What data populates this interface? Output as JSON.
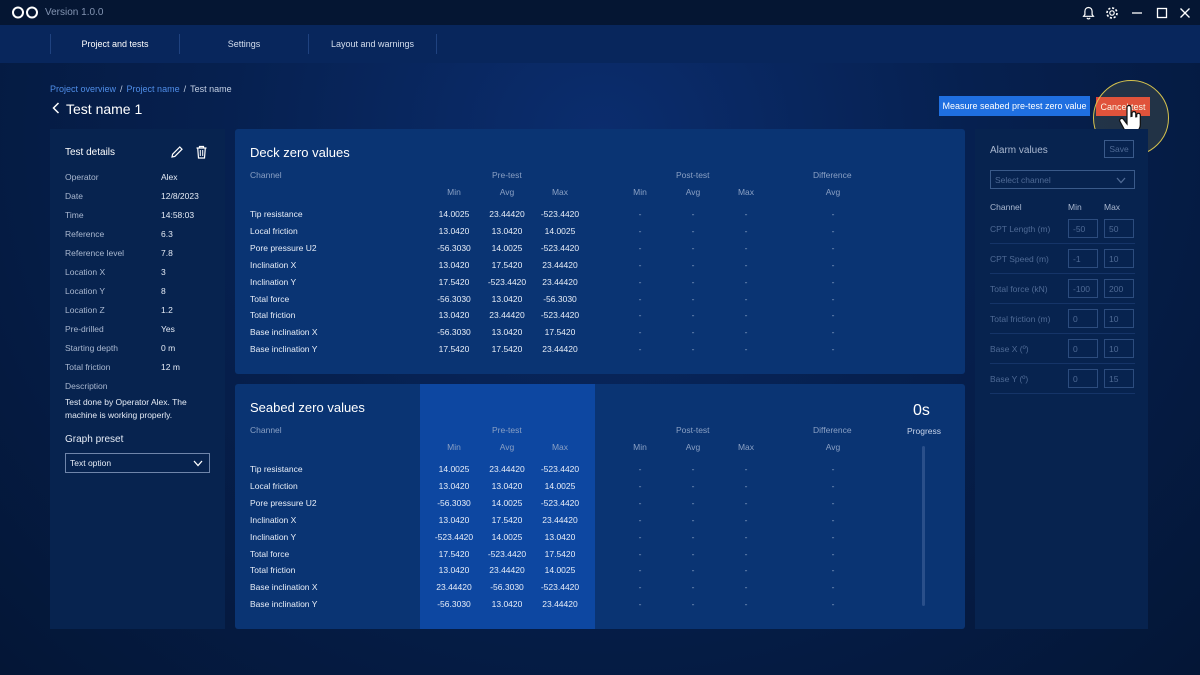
{
  "app": {
    "version": "Version 1.0.0"
  },
  "nav": {
    "tabs": [
      "Project and tests",
      "Settings",
      "Layout and warnings"
    ],
    "active": 0
  },
  "breadcrumb": {
    "items": [
      "Project overview",
      "Project name",
      "Test name"
    ],
    "separator": "/"
  },
  "page": {
    "title": "Test name 1"
  },
  "actions": {
    "measure_label": "Measure seabed pre-test zero value",
    "cancel_label": "Cancel test"
  },
  "details": {
    "title": "Test details",
    "rows": [
      {
        "k": "Operator",
        "v": "Alex"
      },
      {
        "k": "Date",
        "v": "12/8/2023"
      },
      {
        "k": "Time",
        "v": "14:58:03"
      },
      {
        "k": "Reference",
        "v": "6.3"
      },
      {
        "k": "Reference level",
        "v": "7.8"
      },
      {
        "k": "Location X",
        "v": "3"
      },
      {
        "k": "Location Y",
        "v": "8"
      },
      {
        "k": "Location Z",
        "v": "1.2"
      },
      {
        "k": "Pre-drilled",
        "v": "Yes"
      },
      {
        "k": "Starting depth",
        "v": "0 m"
      },
      {
        "k": "Total friction",
        "v": "12 m"
      },
      {
        "k": "Description",
        "v": ""
      }
    ],
    "description": "Test done by Operator Alex. The machine is working properly.",
    "graph_preset_label": "Graph preset",
    "graph_preset_value": "Text option"
  },
  "table_headers": {
    "channel": "Channel",
    "pre": "Pre-test",
    "post": "Post-test",
    "diff": "Difference",
    "min": "Min",
    "avg": "Avg",
    "max": "Max",
    "dash": "-"
  },
  "deck": {
    "title": "Deck zero values",
    "rows": [
      {
        "name": "Tip resistance",
        "min": "14.0025",
        "avg": "23.44420",
        "max": "-523.4420"
      },
      {
        "name": "Local friction",
        "min": "13.0420",
        "avg": "13.0420",
        "max": "14.0025"
      },
      {
        "name": "Pore pressure U2",
        "min": "-56.3030",
        "avg": "14.0025",
        "max": "-523.4420"
      },
      {
        "name": "Inclination X",
        "min": "13.0420",
        "avg": "17.5420",
        "max": "23.44420"
      },
      {
        "name": "Inclination Y",
        "min": "17.5420",
        "avg": "-523.4420",
        "max": "23.44420"
      },
      {
        "name": "Total force",
        "min": "-56.3030",
        "avg": "13.0420",
        "max": "-56.3030"
      },
      {
        "name": "Total friction",
        "min": "13.0420",
        "avg": "23.44420",
        "max": "-523.4420"
      },
      {
        "name": "Base inclination X",
        "min": "-56.3030",
        "avg": "13.0420",
        "max": "17.5420"
      },
      {
        "name": "Base inclination Y",
        "min": "17.5420",
        "avg": "17.5420",
        "max": "23.44420"
      }
    ]
  },
  "seabed": {
    "title": "Seabed zero values",
    "progress_value": "0s",
    "progress_label": "Progress",
    "rows": [
      {
        "name": "Tip resistance",
        "min": "14.0025",
        "avg": "23.44420",
        "max": "-523.4420"
      },
      {
        "name": "Local friction",
        "min": "13.0420",
        "avg": "13.0420",
        "max": "14.0025"
      },
      {
        "name": "Pore pressure U2",
        "min": "-56.3030",
        "avg": "14.0025",
        "max": "-523.4420"
      },
      {
        "name": "Inclination X",
        "min": "13.0420",
        "avg": "17.5420",
        "max": "23.44420"
      },
      {
        "name": "Inclination Y",
        "min": "-523.4420",
        "avg": "14.0025",
        "max": "13.0420"
      },
      {
        "name": "Total force",
        "min": "17.5420",
        "avg": "-523.4420",
        "max": "17.5420"
      },
      {
        "name": "Total friction",
        "min": "13.0420",
        "avg": "23.44420",
        "max": "14.0025"
      },
      {
        "name": "Base inclination X",
        "min": "23.44420",
        "avg": "-56.3030",
        "max": "-523.4420"
      },
      {
        "name": "Base inclination Y",
        "min": "-56.3030",
        "avg": "13.0420",
        "max": "23.44420"
      }
    ]
  },
  "alarm": {
    "title": "Alarm values",
    "save_label": "Save",
    "select_placeholder": "Select channel",
    "headers": {
      "channel": "Channel",
      "min": "Min",
      "max": "Max"
    },
    "rows": [
      {
        "label": "CPT Length (m)",
        "min": "-50",
        "max": "50"
      },
      {
        "label": "CPT Speed (m)",
        "min": "-1",
        "max": "10"
      },
      {
        "label": "Total force (kN)",
        "min": "-100",
        "max": "200"
      },
      {
        "label": "Total friction (m)",
        "min": "0",
        "max": "10"
      },
      {
        "label": "Base X (º)",
        "min": "0",
        "max": "10"
      },
      {
        "label": "Base Y (º)",
        "min": "0",
        "max": "15"
      }
    ]
  },
  "colors": {
    "accent": "#1f6fe0",
    "danger": "#e2423a",
    "link": "#4f8de8",
    "panel": "#0a3473"
  }
}
